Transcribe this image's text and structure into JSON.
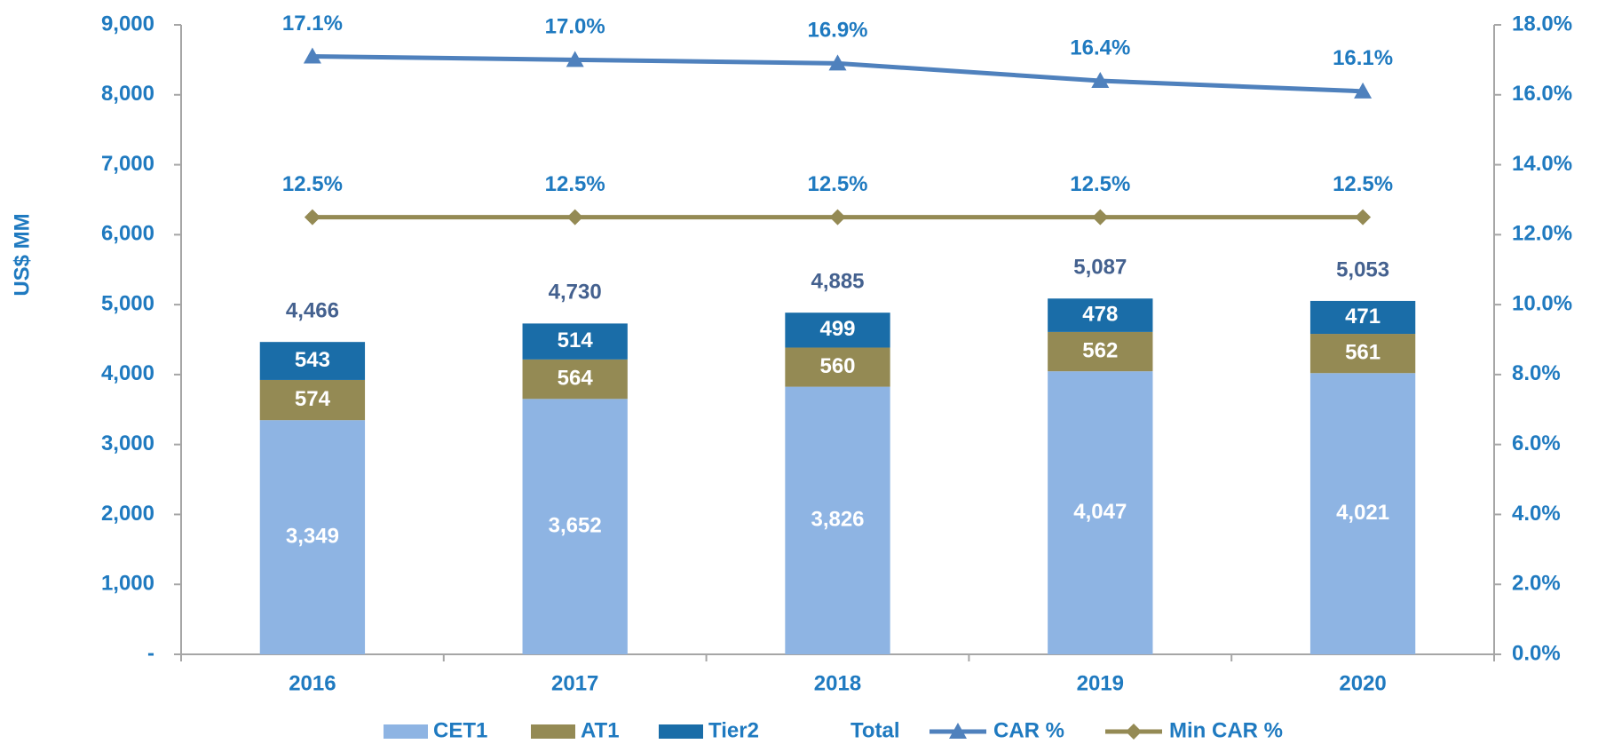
{
  "chart_data": {
    "type": "bar",
    "y_label": "US$ MM",
    "categories": [
      "2016",
      "2017",
      "2018",
      "2019",
      "2020"
    ],
    "ylim": [
      0,
      9000
    ],
    "yticks": [
      {
        "value": 0,
        "label": "-"
      },
      {
        "value": 1000,
        "label": "1,000"
      },
      {
        "value": 2000,
        "label": "2,000"
      },
      {
        "value": 3000,
        "label": "3,000"
      },
      {
        "value": 4000,
        "label": "4,000"
      },
      {
        "value": 5000,
        "label": "5,000"
      },
      {
        "value": 6000,
        "label": "6,000"
      },
      {
        "value": 7000,
        "label": "7,000"
      },
      {
        "value": 8000,
        "label": "8,000"
      },
      {
        "value": 9000,
        "label": "9,000"
      }
    ],
    "y2lim": [
      0,
      18
    ],
    "y2ticks": [
      {
        "value": 0,
        "label": "0.0%"
      },
      {
        "value": 2,
        "label": "2.0%"
      },
      {
        "value": 4,
        "label": "4.0%"
      },
      {
        "value": 6,
        "label": "6.0%"
      },
      {
        "value": 8,
        "label": "8.0%"
      },
      {
        "value": 10,
        "label": "10.0%"
      },
      {
        "value": 12,
        "label": "12.0%"
      },
      {
        "value": 14,
        "label": "14.0%"
      },
      {
        "value": 16,
        "label": "16.0%"
      },
      {
        "value": 18,
        "label": "18.0%"
      }
    ],
    "grid": false,
    "legend": "bottom",
    "series": [
      {
        "name": "CET1",
        "type": "bar",
        "color": "#8eb4e3",
        "values": [
          3349,
          3652,
          3826,
          4047,
          4021
        ],
        "value_labels": [
          "3,349",
          "3,652",
          "3,826",
          "4,047",
          "4,021"
        ]
      },
      {
        "name": "AT1",
        "type": "bar",
        "color": "#948a54",
        "values": [
          574,
          564,
          560,
          562,
          561
        ]
      },
      {
        "name": "Tier2",
        "type": "bar",
        "color": "#1a6da8",
        "values": [
          543,
          514,
          499,
          478,
          471
        ]
      },
      {
        "name": "Total",
        "type": "label",
        "color": "#44618f",
        "values": [
          4466,
          4730,
          4885,
          5087,
          5053
        ],
        "value_labels": [
          "4,466",
          "4,730",
          "4,885",
          "5,087",
          "5,053"
        ]
      },
      {
        "name": "CAR %",
        "type": "line",
        "axis": "y2",
        "marker": "triangle",
        "color": "#4f81bd",
        "values": [
          17.1,
          17.0,
          16.9,
          16.4,
          16.1
        ],
        "value_labels": [
          "17.1%",
          "17.0%",
          "16.9%",
          "16.4%",
          "16.1%"
        ]
      },
      {
        "name": "Min CAR %",
        "type": "line",
        "axis": "y2",
        "marker": "diamond",
        "color": "#948a54",
        "values": [
          12.5,
          12.5,
          12.5,
          12.5,
          12.5
        ],
        "value_labels": [
          "12.5%",
          "12.5%",
          "12.5%",
          "12.5%",
          "12.5%"
        ]
      }
    ]
  }
}
